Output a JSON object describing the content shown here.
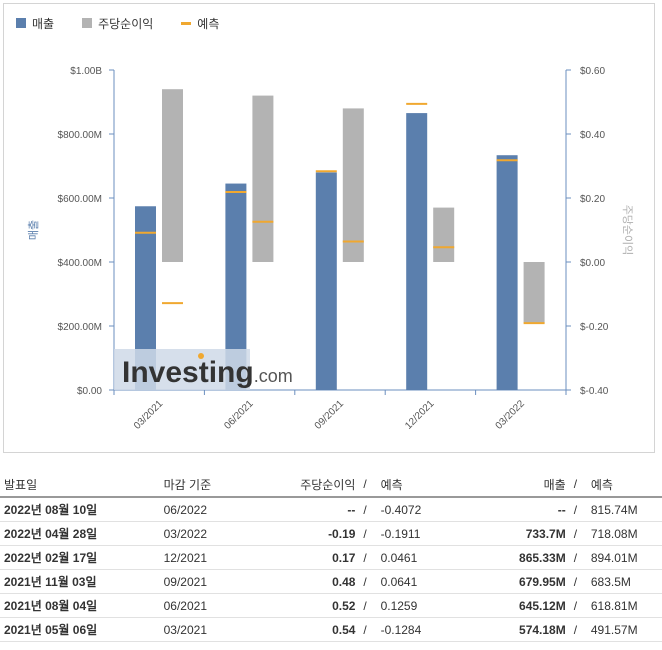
{
  "legend": {
    "revenue": "매출",
    "eps": "주당순이익",
    "forecast": "예측"
  },
  "colors": {
    "revenue": "#5b7fad",
    "eps": "#b3b3b3",
    "forecast": "#f0a830",
    "watermark_bg": "#cfd9e8"
  },
  "watermark": "Investing.com",
  "chart_data": {
    "type": "bar",
    "categories": [
      "03/2021",
      "06/2021",
      "09/2021",
      "12/2021",
      "03/2022"
    ],
    "ylabel": "매출",
    "y2label": "주당순이익",
    "ylim": [
      0,
      1000000000
    ],
    "y2lim": [
      -0.4,
      0.6
    ],
    "yticks": [
      "$0.00",
      "$200.00M",
      "$400.00M",
      "$600.00M",
      "$800.00M",
      "$1.00B"
    ],
    "y2ticks": [
      "$-0.40",
      "$-0.20",
      "$0.00",
      "$0.20",
      "$0.40",
      "$0.60"
    ],
    "series": [
      {
        "name": "매출",
        "axis": "left",
        "values": [
          574180000,
          645120000,
          679950000,
          865330000,
          733700000
        ]
      },
      {
        "name": "매출 예측",
        "axis": "left",
        "values": [
          491570000,
          618810000,
          683500000,
          894010000,
          718080000
        ]
      },
      {
        "name": "주당순이익",
        "axis": "right",
        "values": [
          0.54,
          0.52,
          0.48,
          0.17,
          -0.19
        ]
      },
      {
        "name": "주당순이익 예측",
        "axis": "right",
        "values": [
          -0.1284,
          0.1259,
          0.0641,
          0.0461,
          -0.1911
        ]
      }
    ],
    "legend_position": "top-left",
    "grid": false
  },
  "table": {
    "headers": [
      "발표일",
      "마감 기준",
      "주당순이익",
      "/",
      "예측",
      "매출",
      "/",
      "예측"
    ],
    "rows": [
      {
        "date": "2022년 08월 10일",
        "period": "06/2022",
        "eps": "--",
        "eps_cls": "plain",
        "eps_forecast": "-0.4072",
        "revenue": "--",
        "rev_cls": "plain",
        "revenue_forecast": "815.74M"
      },
      {
        "date": "2022년 04월 28일",
        "period": "03/2022",
        "eps": "-0.19",
        "eps_cls": "neg",
        "eps_forecast": "-0.1911",
        "revenue": "733.7M",
        "rev_cls": "pos",
        "revenue_forecast": "718.08M"
      },
      {
        "date": "2022년 02월 17일",
        "period": "12/2021",
        "eps": "0.17",
        "eps_cls": "pos",
        "eps_forecast": "0.0461",
        "revenue": "865.33M",
        "rev_cls": "blue",
        "revenue_forecast": "894.01M"
      },
      {
        "date": "2021년 11월 03일",
        "period": "09/2021",
        "eps": "0.48",
        "eps_cls": "pos",
        "eps_forecast": "0.0641",
        "revenue": "679.95M",
        "rev_cls": "blue",
        "revenue_forecast": "683.5M"
      },
      {
        "date": "2021년 08월 04일",
        "period": "06/2021",
        "eps": "0.52",
        "eps_cls": "pos",
        "eps_forecast": "0.1259",
        "revenue": "645.12M",
        "rev_cls": "pos",
        "revenue_forecast": "618.81M"
      },
      {
        "date": "2021년 05월 06일",
        "period": "03/2021",
        "eps": "0.54",
        "eps_cls": "pos",
        "eps_forecast": "-0.1284",
        "revenue": "574.18M",
        "rev_cls": "pos",
        "revenue_forecast": "491.57M"
      }
    ]
  }
}
